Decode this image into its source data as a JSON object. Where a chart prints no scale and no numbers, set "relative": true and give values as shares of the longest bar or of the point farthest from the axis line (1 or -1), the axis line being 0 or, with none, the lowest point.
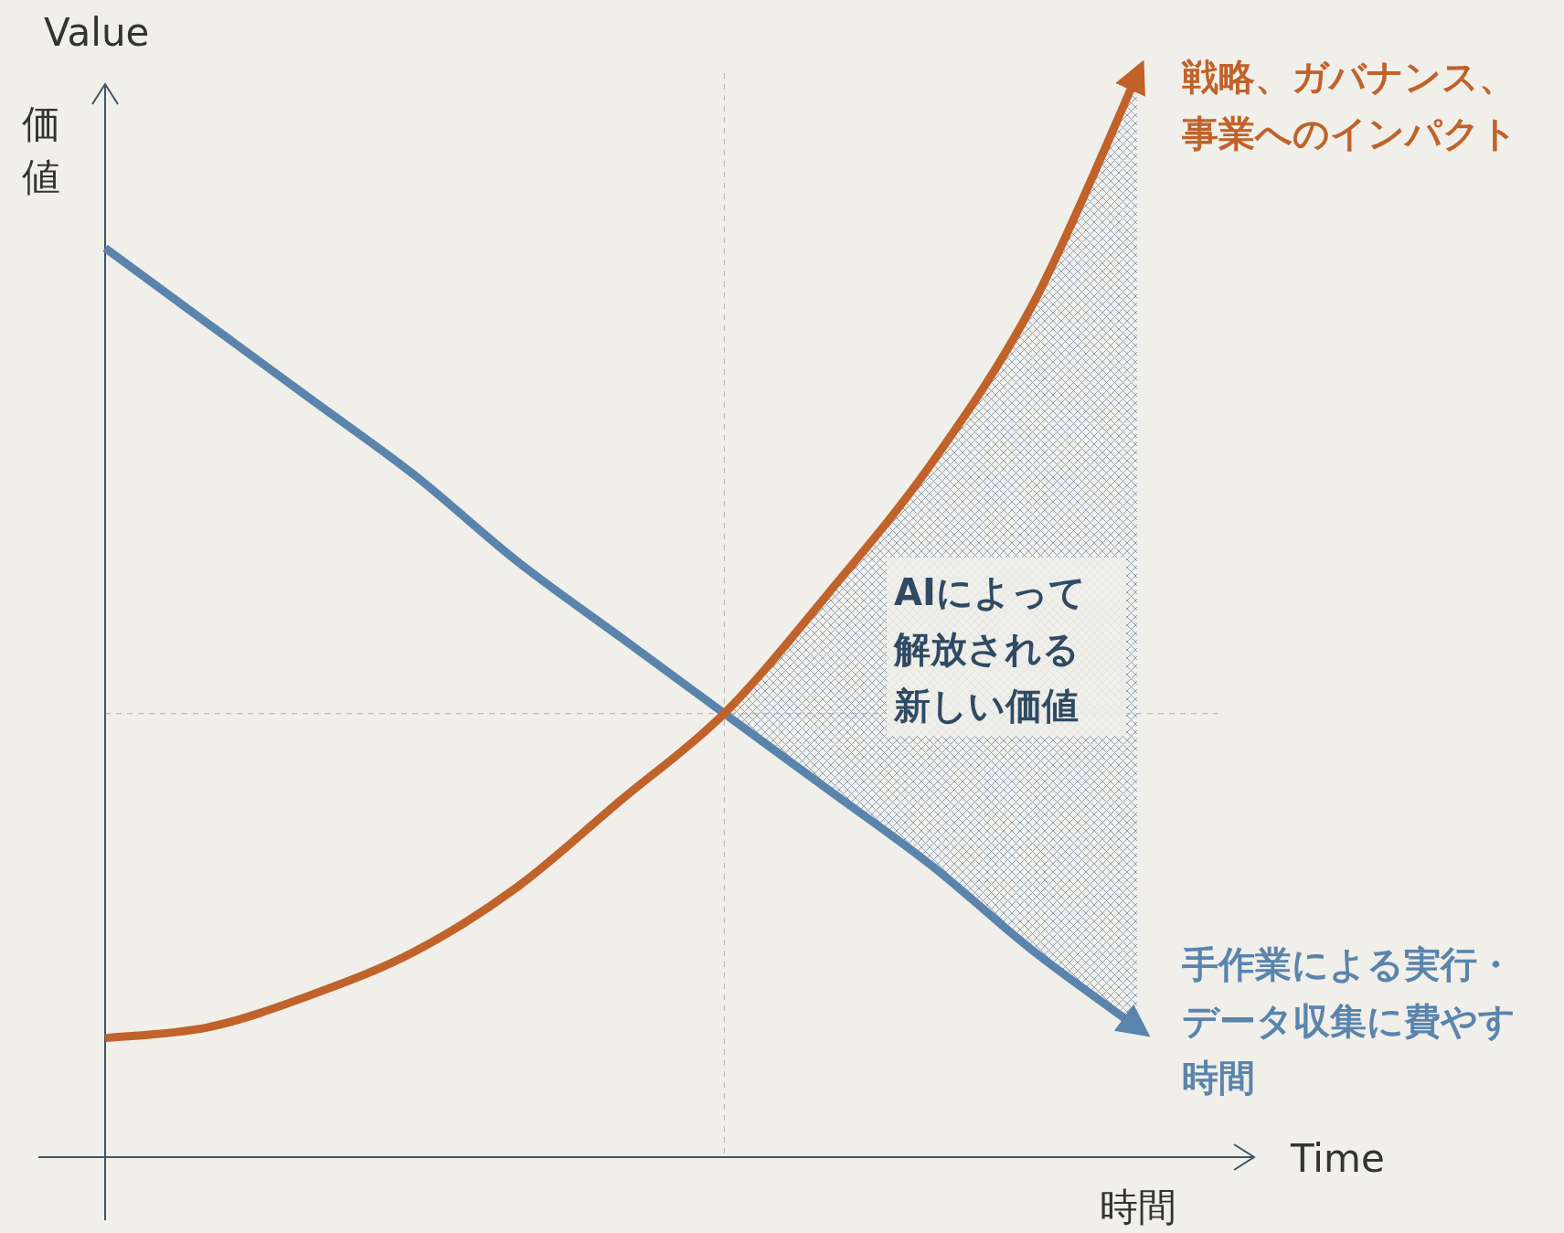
{
  "chart_data": {
    "type": "line",
    "relative": true,
    "xlabel": "時間",
    "ylabel": "価値",
    "annotations": [
      "Value",
      "Time",
      "AIによって解放される新しい価値"
    ],
    "categories": [
      null,
      null,
      null,
      null,
      null,
      null,
      null,
      null,
      null,
      null,
      null
    ],
    "series": [
      {
        "name": "手作業による実行・データ収集に費やす時間",
        "color": "#5b84ad",
        "values": [
          0.84,
          0.77,
          0.7,
          0.63,
          0.55,
          0.48,
          0.41,
          0.34,
          0.27,
          0.19,
          0.12
        ]
      },
      {
        "name": "戦略、ガバナンス、事業へのインパクト",
        "color": "#c0622a",
        "values": [
          0.11,
          0.12,
          0.15,
          0.19,
          0.25,
          0.33,
          0.41,
          0.52,
          0.64,
          0.79,
          1
        ],
        "lower": [
          null,
          null,
          null,
          null,
          null,
          null,
          0.41,
          0.34,
          0.27,
          0.19,
          0.12
        ],
        "upper": [
          null,
          null,
          null,
          null,
          null,
          null,
          0.41,
          0.52,
          0.64,
          0.79,
          1
        ]
      }
    ],
    "ref_lines": [
      {
        "axis": "y",
        "value": 0.41,
        "color": "#bbbbbb",
        "line_style": "dashed"
      }
    ],
    "legend": false,
    "marker": "none",
    "line_style": "solid"
  }
}
